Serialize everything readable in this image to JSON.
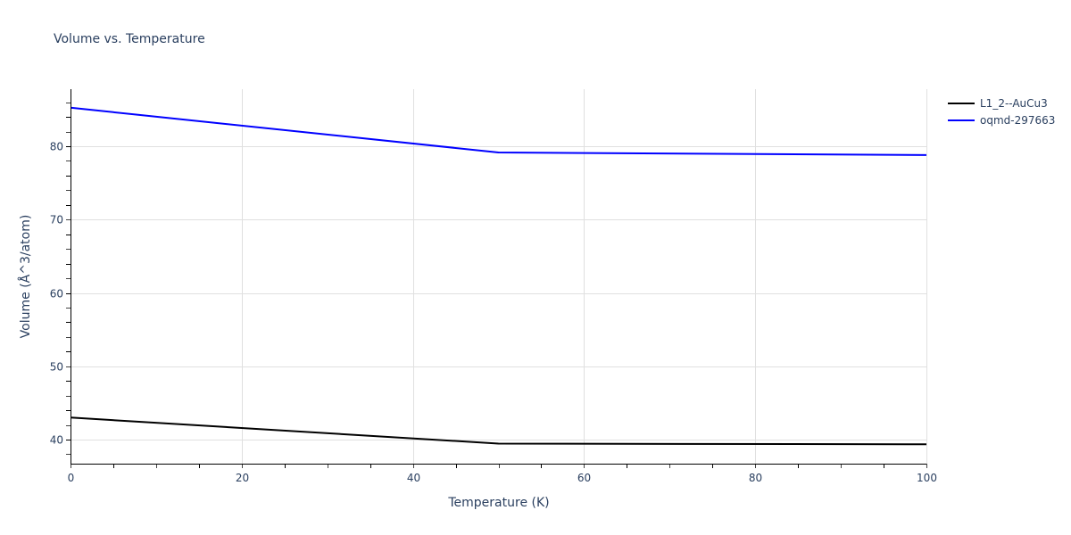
{
  "chart": {
    "title": "Volume vs. Temperature"
  },
  "chart_data": {
    "type": "line",
    "title": "Volume vs. Temperature",
    "xlabel": "Temperature (K)",
    "ylabel": "Volume (Å^3/atom)",
    "xlim": [
      0,
      100
    ],
    "ylim": [
      37,
      88
    ],
    "x_ticks": [
      0,
      20,
      40,
      60,
      80,
      100
    ],
    "y_ticks": [
      40,
      50,
      60,
      70,
      80
    ],
    "grid": true,
    "legend_position": "top-right-outside",
    "x": [
      0,
      50,
      100
    ],
    "series": [
      {
        "name": "L1_2--AuCu3",
        "color": "#000000",
        "values": [
          43.0,
          39.45,
          39.35
        ]
      },
      {
        "name": "oqmd-297663",
        "color": "#0000ff",
        "values": [
          85.25,
          79.15,
          78.8
        ]
      }
    ]
  },
  "legend": {
    "items": [
      {
        "label": "L1_2--AuCu3",
        "color": "#000000"
      },
      {
        "label": "oqmd-297663",
        "color": "#0000ff"
      }
    ]
  }
}
